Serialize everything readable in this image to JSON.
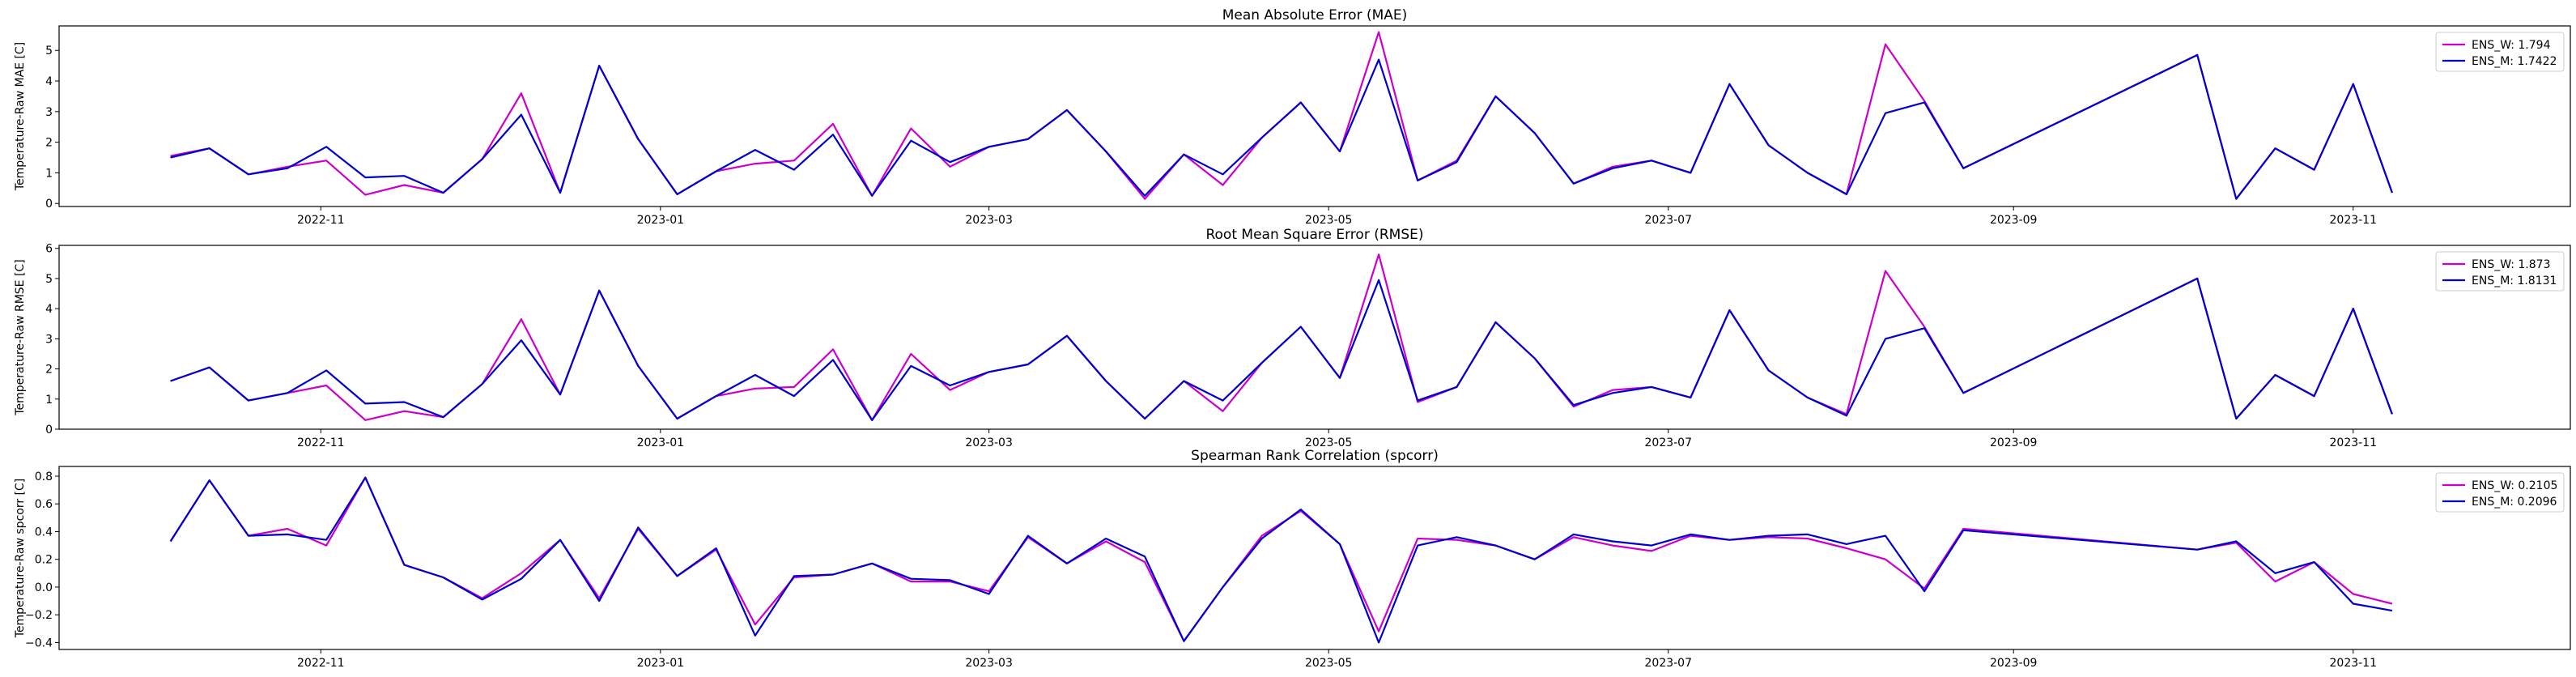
{
  "chart_data": [
    {
      "type": "line",
      "title": "Mean Absolute Error (MAE)",
      "xlabel": "",
      "ylabel": "Temperature-Raw MAE [C]",
      "ylim": [
        -0.1,
        5.8
      ],
      "yticks": [
        0,
        1,
        2,
        3,
        4,
        5
      ],
      "grid": false,
      "legend_position": "top-right",
      "x": [
        "2022-10-05",
        "2022-10-12",
        "2022-10-19",
        "2022-10-26",
        "2022-11-02",
        "2022-11-09",
        "2022-11-16",
        "2022-11-23",
        "2022-11-30",
        "2022-12-07",
        "2022-12-14",
        "2022-12-21",
        "2022-12-28",
        "2023-01-04",
        "2023-01-11",
        "2023-01-18",
        "2023-01-25",
        "2023-02-01",
        "2023-02-08",
        "2023-02-15",
        "2023-02-22",
        "2023-03-01",
        "2023-03-08",
        "2023-03-15",
        "2023-03-22",
        "2023-03-29",
        "2023-04-05",
        "2023-04-12",
        "2023-04-19",
        "2023-04-26",
        "2023-05-03",
        "2023-05-10",
        "2023-05-17",
        "2023-05-24",
        "2023-05-31",
        "2023-06-07",
        "2023-06-14",
        "2023-06-21",
        "2023-06-28",
        "2023-07-05",
        "2023-07-12",
        "2023-07-19",
        "2023-07-26",
        "2023-08-02",
        "2023-08-09",
        "2023-08-16",
        "2023-08-23",
        "2023-10-04",
        "2023-10-11",
        "2023-10-18",
        "2023-10-25",
        "2023-11-01",
        "2023-11-08"
      ],
      "series": [
        {
          "name": "ENS_W: 1.794",
          "color": "#cc00cc",
          "values": [
            1.55,
            1.8,
            0.95,
            1.2,
            1.4,
            0.28,
            0.6,
            0.35,
            1.45,
            3.6,
            0.35,
            4.5,
            2.1,
            0.3,
            1.05,
            1.3,
            1.4,
            2.6,
            0.25,
            2.45,
            1.2,
            1.85,
            2.1,
            3.05,
            1.7,
            0.15,
            1.6,
            0.6,
            2.15,
            3.3,
            1.7,
            5.6,
            0.75,
            1.4,
            3.5,
            2.3,
            0.65,
            1.2,
            1.4,
            1.0,
            3.9,
            1.9,
            1.0,
            0.3,
            5.2,
            3.35,
            1.15,
            4.85,
            0.15,
            1.8,
            1.1,
            3.9,
            0.35
          ]
        },
        {
          "name": "ENS_M: 1.7422",
          "color": "#0000cc",
          "values": [
            1.5,
            1.8,
            0.95,
            1.15,
            1.85,
            0.85,
            0.9,
            0.35,
            1.45,
            2.9,
            0.35,
            4.5,
            2.1,
            0.3,
            1.05,
            1.75,
            1.1,
            2.25,
            0.25,
            2.05,
            1.35,
            1.85,
            2.1,
            3.05,
            1.7,
            0.25,
            1.6,
            0.95,
            2.15,
            3.3,
            1.7,
            4.7,
            0.75,
            1.35,
            3.5,
            2.3,
            0.65,
            1.15,
            1.4,
            1.0,
            3.9,
            1.9,
            1.0,
            0.3,
            2.95,
            3.3,
            1.15,
            4.85,
            0.15,
            1.8,
            1.1,
            3.9,
            0.35
          ]
        }
      ]
    },
    {
      "type": "line",
      "title": "Root Mean Square Error (RMSE)",
      "xlabel": "",
      "ylabel": "Temperature-Raw RMSE [C]",
      "ylim": [
        0,
        6.1
      ],
      "yticks": [
        0,
        1,
        2,
        3,
        4,
        5,
        6
      ],
      "grid": false,
      "legend_position": "top-right",
      "x": [
        "2022-10-05",
        "2022-10-12",
        "2022-10-19",
        "2022-10-26",
        "2022-11-02",
        "2022-11-09",
        "2022-11-16",
        "2022-11-23",
        "2022-11-30",
        "2022-12-07",
        "2022-12-14",
        "2022-12-21",
        "2022-12-28",
        "2023-01-04",
        "2023-01-11",
        "2023-01-18",
        "2023-01-25",
        "2023-02-01",
        "2023-02-08",
        "2023-02-15",
        "2023-02-22",
        "2023-03-01",
        "2023-03-08",
        "2023-03-15",
        "2023-03-22",
        "2023-03-29",
        "2023-04-05",
        "2023-04-12",
        "2023-04-19",
        "2023-04-26",
        "2023-05-03",
        "2023-05-10",
        "2023-05-17",
        "2023-05-24",
        "2023-05-31",
        "2023-06-07",
        "2023-06-14",
        "2023-06-21",
        "2023-06-28",
        "2023-07-05",
        "2023-07-12",
        "2023-07-19",
        "2023-07-26",
        "2023-08-02",
        "2023-08-09",
        "2023-08-16",
        "2023-08-23",
        "2023-10-04",
        "2023-10-11",
        "2023-10-18",
        "2023-10-25",
        "2023-11-01",
        "2023-11-08"
      ],
      "series": [
        {
          "name": "ENS_W: 1.873",
          "color": "#cc00cc",
          "values": [
            1.6,
            2.05,
            0.95,
            1.2,
            1.45,
            0.3,
            0.6,
            0.4,
            1.5,
            3.65,
            1.15,
            4.6,
            2.1,
            0.35,
            1.1,
            1.35,
            1.4,
            2.65,
            0.3,
            2.5,
            1.3,
            1.9,
            2.15,
            3.1,
            1.6,
            0.35,
            1.6,
            0.6,
            2.2,
            3.4,
            1.7,
            5.8,
            0.9,
            1.4,
            3.55,
            2.35,
            0.75,
            1.3,
            1.4,
            1.05,
            3.95,
            1.95,
            1.05,
            0.5,
            5.25,
            3.4,
            1.2,
            5.0,
            0.35,
            1.8,
            1.1,
            4.0,
            0.5
          ]
        },
        {
          "name": "ENS_M: 1.8131",
          "color": "#0000cc",
          "values": [
            1.6,
            2.05,
            0.95,
            1.2,
            1.95,
            0.85,
            0.9,
            0.4,
            1.5,
            2.95,
            1.15,
            4.6,
            2.1,
            0.35,
            1.1,
            1.8,
            1.1,
            2.3,
            0.3,
            2.1,
            1.45,
            1.9,
            2.15,
            3.1,
            1.6,
            0.35,
            1.6,
            0.95,
            2.2,
            3.4,
            1.7,
            4.95,
            0.95,
            1.4,
            3.55,
            2.35,
            0.8,
            1.2,
            1.4,
            1.05,
            3.95,
            1.95,
            1.05,
            0.45,
            3.0,
            3.35,
            1.2,
            5.0,
            0.35,
            1.8,
            1.1,
            4.0,
            0.5
          ]
        }
      ]
    },
    {
      "type": "line",
      "title": "Spearman Rank Correlation (spcorr)",
      "xlabel": "",
      "ylabel": "Temperature-Raw spcorr [C]",
      "ylim": [
        -0.45,
        0.87
      ],
      "yticks": [
        -0.4,
        -0.2,
        0.0,
        0.2,
        0.4,
        0.6,
        0.8
      ],
      "ytick_labels": [
        "−0.4",
        "−0.2",
        "0.0",
        "0.2",
        "0.4",
        "0.6",
        "0.8"
      ],
      "grid": false,
      "legend_position": "top-right",
      "x": [
        "2022-10-05",
        "2022-10-12",
        "2022-10-19",
        "2022-10-26",
        "2022-11-02",
        "2022-11-09",
        "2022-11-16",
        "2022-11-23",
        "2022-11-30",
        "2022-12-07",
        "2022-12-14",
        "2022-12-21",
        "2022-12-28",
        "2023-01-04",
        "2023-01-11",
        "2023-01-18",
        "2023-01-25",
        "2023-02-01",
        "2023-02-08",
        "2023-02-15",
        "2023-02-22",
        "2023-03-01",
        "2023-03-08",
        "2023-03-15",
        "2023-03-22",
        "2023-03-29",
        "2023-04-05",
        "2023-04-12",
        "2023-04-19",
        "2023-04-26",
        "2023-05-03",
        "2023-05-10",
        "2023-05-17",
        "2023-05-24",
        "2023-05-31",
        "2023-06-07",
        "2023-06-14",
        "2023-06-21",
        "2023-06-28",
        "2023-07-05",
        "2023-07-12",
        "2023-07-19",
        "2023-07-26",
        "2023-08-02",
        "2023-08-09",
        "2023-08-16",
        "2023-08-23",
        "2023-10-04",
        "2023-10-11",
        "2023-10-18",
        "2023-10-25",
        "2023-11-01",
        "2023-11-08"
      ],
      "series": [
        {
          "name": "ENS_W: 0.2105",
          "color": "#cc00cc",
          "values": [
            0.33,
            0.77,
            0.37,
            0.42,
            0.3,
            0.79,
            0.16,
            0.07,
            -0.08,
            0.1,
            0.34,
            -0.08,
            0.42,
            0.08,
            0.27,
            -0.27,
            0.07,
            0.09,
            0.17,
            0.04,
            0.04,
            -0.03,
            0.36,
            0.17,
            0.33,
            0.18,
            -0.39,
            0.0,
            0.37,
            0.55,
            0.31,
            -0.32,
            0.35,
            0.34,
            0.3,
            0.2,
            0.36,
            0.3,
            0.26,
            0.37,
            0.34,
            0.36,
            0.35,
            0.28,
            0.2,
            -0.01,
            0.42,
            0.27,
            0.32,
            0.04,
            0.18,
            -0.05,
            -0.12
          ]
        },
        {
          "name": "ENS_M: 0.2096",
          "color": "#0000cc",
          "values": [
            0.33,
            0.77,
            0.37,
            0.38,
            0.34,
            0.79,
            0.16,
            0.07,
            -0.09,
            0.06,
            0.34,
            -0.1,
            0.43,
            0.08,
            0.28,
            -0.35,
            0.08,
            0.09,
            0.17,
            0.06,
            0.05,
            -0.05,
            0.37,
            0.17,
            0.35,
            0.22,
            -0.39,
            0.0,
            0.35,
            0.56,
            0.31,
            -0.4,
            0.3,
            0.36,
            0.3,
            0.2,
            0.38,
            0.33,
            0.3,
            0.38,
            0.34,
            0.37,
            0.38,
            0.31,
            0.37,
            -0.03,
            0.41,
            0.27,
            0.33,
            0.1,
            0.18,
            -0.12,
            -0.17
          ]
        }
      ]
    }
  ],
  "x_axis": {
    "ticks": [
      "2022-11-01",
      "2023-01-01",
      "2023-03-01",
      "2023-05-01",
      "2023-07-01",
      "2023-09-01",
      "2023-11-01"
    ],
    "tick_labels": [
      "2022-11",
      "2023-01",
      "2023-03",
      "2023-05",
      "2023-07",
      "2023-09",
      "2023-11"
    ],
    "xlim": [
      "2022-09-15",
      "2023-12-10"
    ]
  }
}
